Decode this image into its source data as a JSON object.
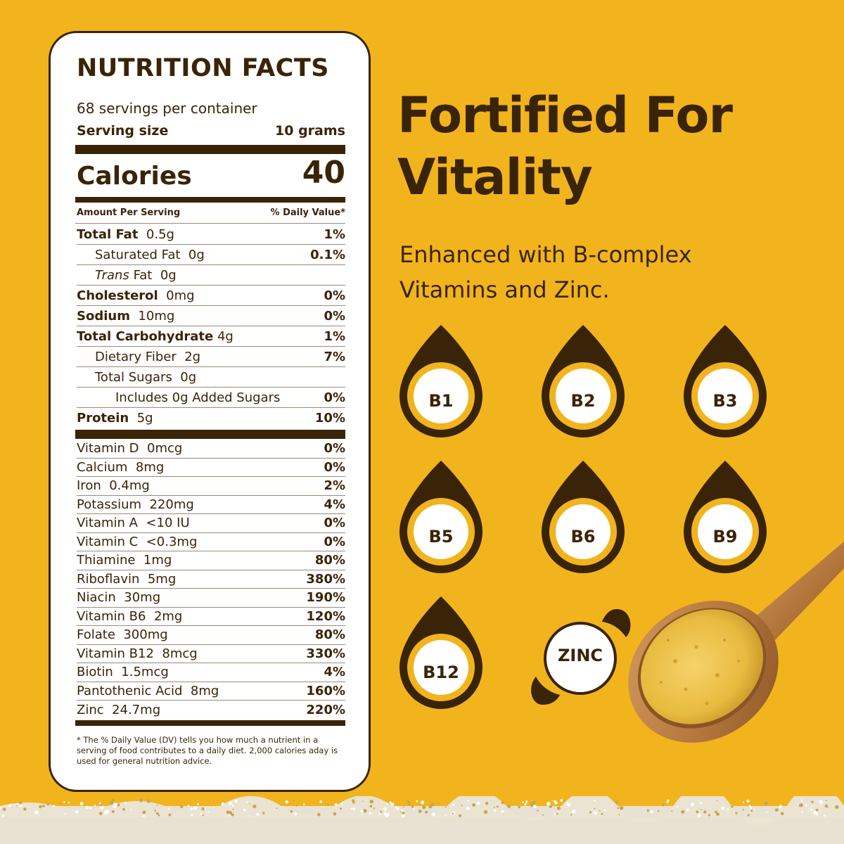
{
  "label": {
    "title": "NUTRITION FACTS",
    "servings_per_container": "68 servings per container",
    "serving_size_label": "Serving size",
    "serving_size_value": "10 grams",
    "calories_label": "Calories",
    "calories_value": "40",
    "amount_per_serving": "Amount Per Serving",
    "daily_value_header": "% Daily Value*",
    "macros": [
      {
        "name": "Total Fat",
        "amount": "0.5g",
        "dv": "1%"
      },
      {
        "name": "Saturated Fat",
        "amount": "0g",
        "dv": "0.1%"
      },
      {
        "name": "Trans",
        "name_suffix": "Fat",
        "amount": "0g",
        "dv": ""
      },
      {
        "name": "Cholesterol",
        "amount": "0mg",
        "dv": "0%"
      },
      {
        "name": "Sodium",
        "amount": "10mg",
        "dv": "0%"
      },
      {
        "name": "Total Carbohydrate",
        "amount": "4g",
        "dv": "1%"
      },
      {
        "name": "Dietary Fiber",
        "amount": "2g",
        "dv": "7%"
      },
      {
        "name": "Total Sugars",
        "amount": "0g",
        "dv": ""
      },
      {
        "name": "Includes 0g Added Sugars",
        "amount": "",
        "dv": "0%"
      },
      {
        "name": "Protein",
        "amount": "5g",
        "dv": "10%"
      }
    ],
    "micros": [
      {
        "name": "Vitamin D",
        "amount": "0mcg",
        "dv": "0%"
      },
      {
        "name": "Calcium",
        "amount": "8mg",
        "dv": "0%"
      },
      {
        "name": "Iron",
        "amount": "0.4mg",
        "dv": "2%"
      },
      {
        "name": "Potassium",
        "amount": "220mg",
        "dv": "4%"
      },
      {
        "name": "Vitamin A",
        "amount": "<10 IU",
        "dv": "0%"
      },
      {
        "name": "Vitamin C",
        "amount": "<0.3mg",
        "dv": "0%"
      },
      {
        "name": "Thiamine",
        "amount": "1mg",
        "dv": "80%"
      },
      {
        "name": "Riboflavin",
        "amount": "5mg",
        "dv": "380%"
      },
      {
        "name": "Niacin",
        "amount": "30mg",
        "dv": "190%"
      },
      {
        "name": "Vitamin B6",
        "amount": "2mg",
        "dv": "120%"
      },
      {
        "name": "Folate",
        "amount": "300mg",
        "dv": "80%"
      },
      {
        "name": "Vitamin B12",
        "amount": "8mcg",
        "dv": "330%"
      },
      {
        "name": "Biotin",
        "amount": "1.5mcg",
        "dv": "4%"
      },
      {
        "name": "Pantothenic Acid",
        "amount": "8mg",
        "dv": "160%"
      },
      {
        "name": "Zinc",
        "amount": "24.7mg",
        "dv": "220%"
      }
    ],
    "footnote": "* The % Daily Value (DV) tells you how much a nutrient in a serving of food contributes to a daily diet. 2,000 calories aday is used for general nutrition advice."
  },
  "hero": {
    "headline_line1": "Fortified For",
    "headline_line2": "Vitality",
    "subline_line1": "Enhanced with B-complex",
    "subline_line2": "Vitamins and Zinc."
  },
  "badges": [
    "B1",
    "B2",
    "B3",
    "B5",
    "B6",
    "B9",
    "B12"
  ],
  "zinc_badge": "ZINC",
  "colors": {
    "background": "#f2b41d",
    "brown": "#3a2408",
    "white": "#ffffff"
  }
}
